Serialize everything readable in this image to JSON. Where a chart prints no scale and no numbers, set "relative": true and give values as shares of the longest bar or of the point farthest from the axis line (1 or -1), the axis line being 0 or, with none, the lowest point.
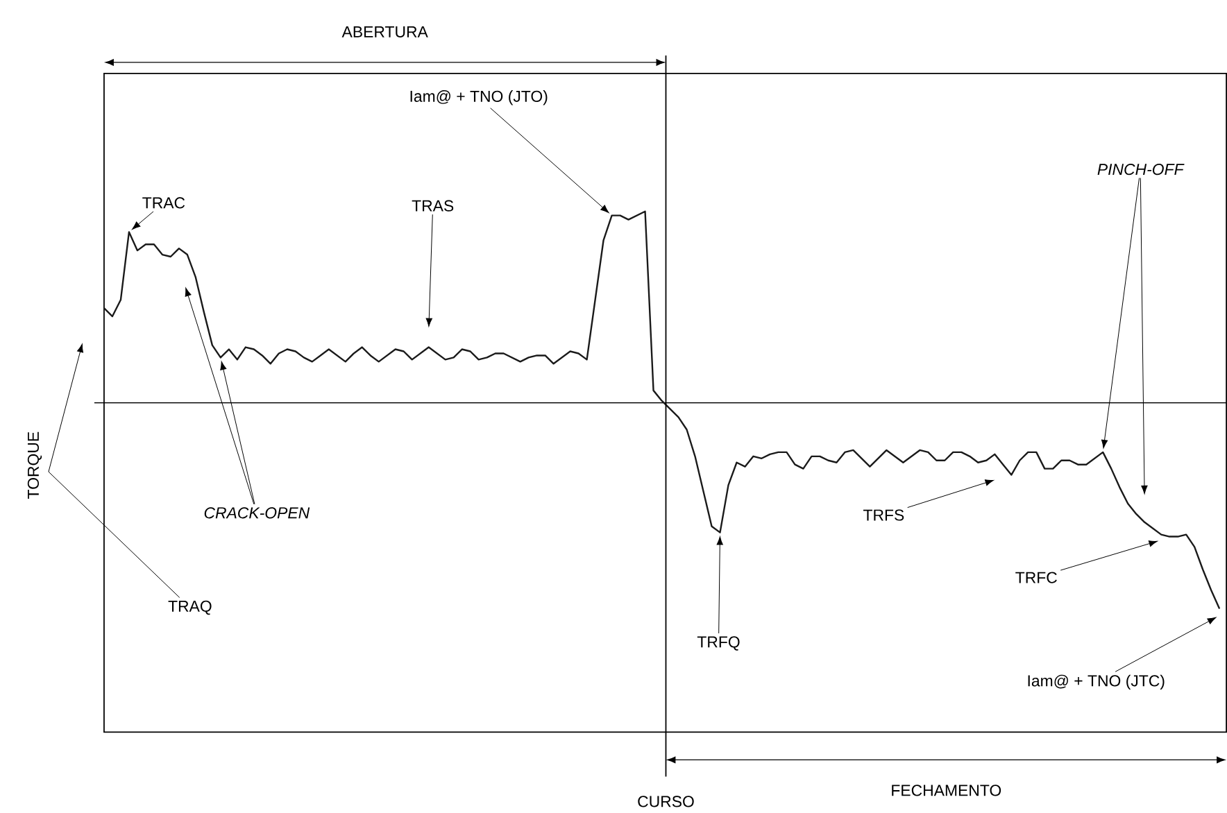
{
  "chart_data": {
    "type": "line",
    "relative": true,
    "ylabel": "TORQUE",
    "categories": [
      null,
      null,
      null,
      null,
      null,
      null,
      null,
      null,
      null,
      null,
      null,
      null,
      null,
      null,
      null,
      null,
      null,
      null,
      null,
      null,
      null,
      null,
      null,
      null,
      null,
      null,
      null,
      null,
      null,
      null,
      null,
      null,
      null,
      null,
      null,
      null,
      null,
      null,
      null,
      null,
      null,
      null,
      null,
      null,
      null,
      null,
      null,
      null,
      null,
      null,
      null,
      null,
      null,
      null,
      null,
      null,
      null,
      null,
      null,
      null,
      null,
      null,
      null,
      null,
      null,
      null,
      null,
      null,
      null,
      null,
      null,
      null,
      null,
      null,
      null,
      null,
      null,
      null,
      null,
      null,
      null,
      null,
      null,
      null,
      null,
      null,
      null,
      null,
      null,
      null,
      null,
      null,
      null,
      null,
      null,
      null,
      null,
      null,
      null,
      null,
      null,
      null,
      null,
      null,
      null,
      null,
      null,
      null,
      null,
      null,
      null,
      null,
      null,
      null,
      null,
      null,
      null,
      null,
      null,
      null,
      null,
      null,
      null,
      null,
      null,
      null,
      null,
      null,
      null,
      null,
      null,
      null,
      null,
      null,
      null
    ],
    "series": [
      {
        "color": "#1a1a1a",
        "values": [
          0.46,
          0.42,
          0.5,
          0.83,
          0.74,
          0.77,
          0.77,
          0.72,
          0.71,
          0.75,
          0.72,
          0.61,
          0.44,
          0.28,
          0.22,
          0.26,
          0.21,
          0.27,
          0.26,
          0.23,
          0.19,
          0.24,
          0.26,
          0.25,
          0.22,
          0.2,
          0.23,
          0.26,
          0.23,
          0.2,
          0.24,
          0.27,
          0.23,
          0.2,
          0.23,
          0.26,
          0.25,
          0.21,
          0.24,
          0.27,
          0.24,
          0.21,
          0.22,
          0.26,
          0.25,
          0.21,
          0.22,
          0.24,
          0.24,
          0.22,
          0.2,
          0.22,
          0.23,
          0.23,
          0.19,
          0.22,
          0.25,
          0.24,
          0.21,
          0.5,
          0.79,
          0.91,
          0.91,
          0.89,
          0.91,
          0.93,
          0.06,
          0.01,
          -0.03,
          -0.07,
          -0.13,
          -0.26,
          -0.43,
          -0.6,
          -0.63,
          -0.4,
          -0.29,
          -0.31,
          -0.26,
          -0.27,
          -0.25,
          -0.24,
          -0.24,
          -0.3,
          -0.32,
          -0.26,
          -0.26,
          -0.28,
          -0.29,
          -0.24,
          -0.23,
          -0.27,
          -0.31,
          -0.27,
          -0.23,
          -0.26,
          -0.29,
          -0.26,
          -0.23,
          -0.24,
          -0.28,
          -0.28,
          -0.24,
          -0.24,
          -0.26,
          -0.29,
          -0.28,
          -0.25,
          -0.3,
          -0.35,
          -0.28,
          -0.24,
          -0.24,
          -0.32,
          -0.32,
          -0.28,
          -0.28,
          -0.3,
          -0.3,
          -0.27,
          -0.24,
          -0.32,
          -0.41,
          -0.49,
          -0.54,
          -0.58,
          -0.61,
          -0.64,
          -0.65,
          -0.65,
          -0.64,
          -0.7,
          -0.81,
          -0.91,
          -1
        ]
      }
    ],
    "annotations": [
      "ABERTURA",
      "FECHAMENTO",
      "TRAC",
      "TRAS",
      "Iam@ + TNO (JTO)",
      "CRACK-OPEN",
      "TRAQ",
      "TRFQ",
      "TRFS",
      "TRFC",
      "PINCH-OFF",
      "Iam@ + TNO (JTC)",
      "CURSO"
    ]
  }
}
